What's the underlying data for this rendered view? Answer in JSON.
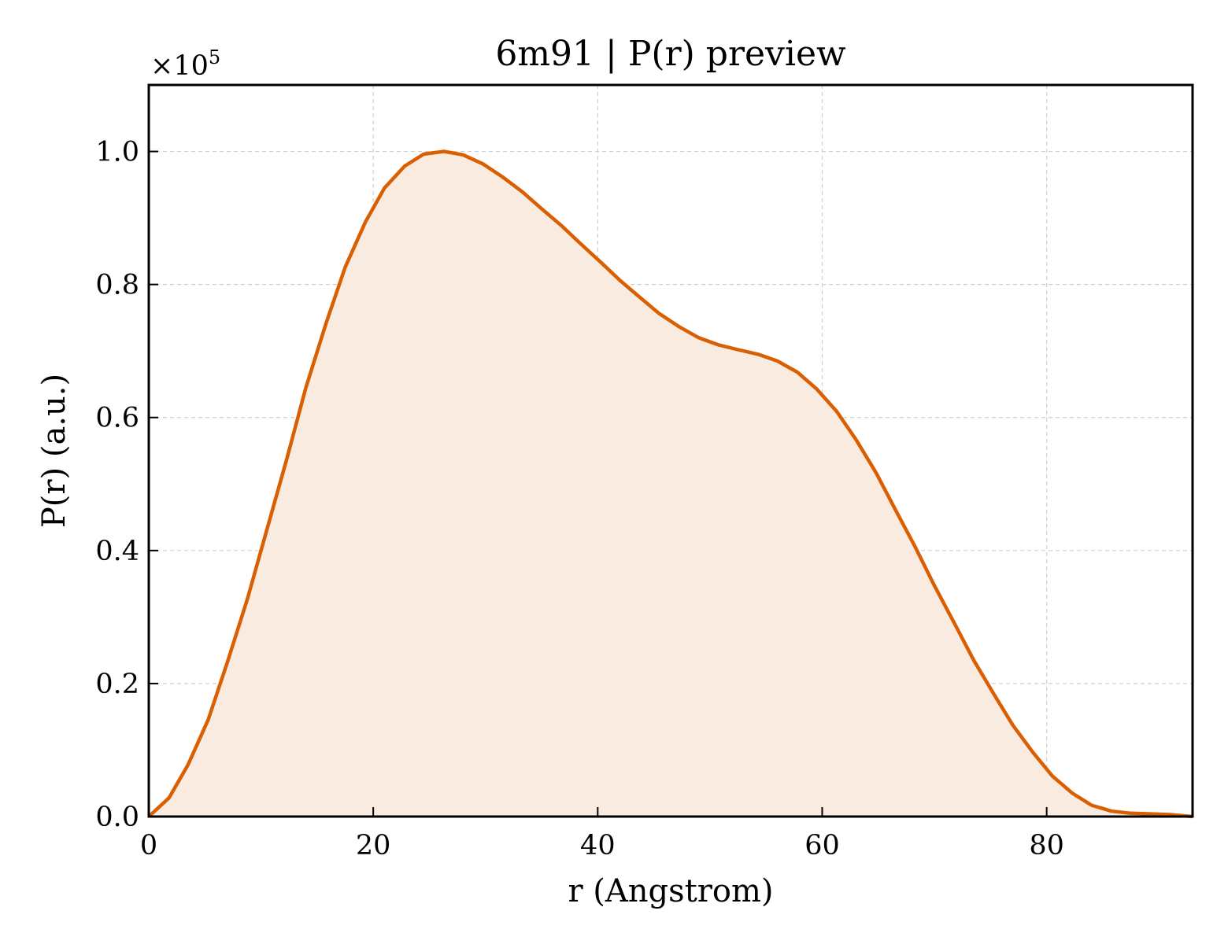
{
  "chart_data": {
    "type": "area",
    "title": "6m91 | P(r) preview",
    "xlabel": "r (Angstrom)",
    "ylabel": "P(r) (a.u.)",
    "y_multiplier_base": "×10",
    "y_multiplier_exp": "5",
    "xlim": [
      0,
      93
    ],
    "ylim": [
      0,
      1.1
    ],
    "xticks": [
      0,
      20,
      40,
      60,
      80
    ],
    "xtick_labels": [
      "0",
      "20",
      "40",
      "60",
      "80"
    ],
    "yticks": [
      0,
      0.2,
      0.4,
      0.6,
      0.8,
      1.0
    ],
    "ytick_labels": [
      "0.0",
      "0.2",
      "0.4",
      "0.6",
      "0.8",
      "1.0"
    ],
    "grid": true,
    "line_color": "#d95f02",
    "fill_color": "#f9ebe0",
    "series": [
      {
        "x": [
          0,
          1.8,
          3.5,
          5.3,
          7.0,
          8.8,
          10.5,
          12.3,
          14.0,
          15.8,
          17.5,
          19.3,
          21.0,
          22.8,
          24.5,
          26.3,
          28.0,
          29.8,
          31.5,
          33.3,
          35.0,
          36.8,
          38.5,
          40.3,
          42.0,
          43.8,
          45.5,
          47.3,
          49.0,
          50.8,
          52.5,
          54.3,
          56.0,
          57.8,
          59.5,
          61.3,
          63.0,
          64.8,
          66.5,
          68.3,
          70.0,
          71.8,
          73.5,
          75.3,
          77.0,
          78.8,
          80.5,
          82.3,
          84.0,
          85.8,
          87.5,
          89.3,
          91.0,
          93.0
        ],
        "values": [
          0.0,
          0.028,
          0.078,
          0.146,
          0.232,
          0.328,
          0.43,
          0.538,
          0.645,
          0.742,
          0.826,
          0.894,
          0.945,
          0.978,
          0.996,
          1.0,
          0.995,
          0.981,
          0.962,
          0.939,
          0.914,
          0.888,
          0.861,
          0.833,
          0.806,
          0.78,
          0.756,
          0.736,
          0.72,
          0.709,
          0.702,
          0.695,
          0.685,
          0.668,
          0.643,
          0.609,
          0.567,
          0.517,
          0.462,
          0.405,
          0.347,
          0.29,
          0.235,
          0.184,
          0.137,
          0.096,
          0.061,
          0.035,
          0.017,
          0.008,
          0.005,
          0.004,
          0.003,
          0.0
        ]
      }
    ]
  }
}
